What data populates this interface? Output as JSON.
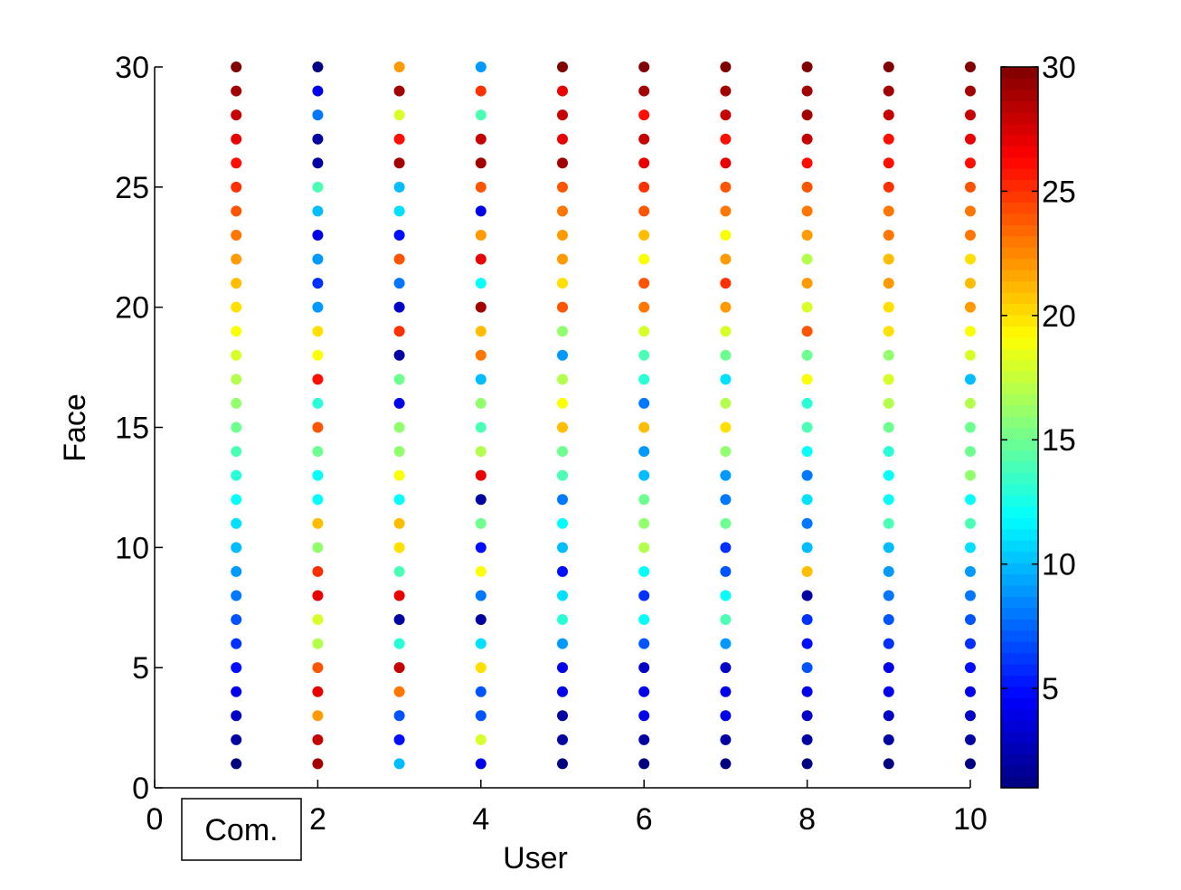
{
  "chart_data": {
    "type": "scatter",
    "x_label": "User",
    "y_label": "Face",
    "annotation": "Com.",
    "x": [
      1,
      2,
      3,
      4,
      5,
      6,
      7,
      8,
      9,
      10
    ],
    "y": [
      1,
      2,
      3,
      4,
      5,
      6,
      7,
      8,
      9,
      10,
      11,
      12,
      13,
      14,
      15,
      16,
      17,
      18,
      19,
      20,
      21,
      22,
      23,
      24,
      25,
      26,
      27,
      28,
      29,
      30
    ],
    "values": [
      [
        1,
        2,
        3,
        4,
        5,
        6,
        7,
        8,
        9,
        10,
        11,
        12,
        13,
        14,
        15,
        16,
        17,
        18,
        19,
        20,
        21,
        22,
        23,
        24,
        25,
        26,
        27,
        28,
        29,
        30
      ],
      [
        29,
        28,
        22,
        27,
        24,
        17,
        18,
        27,
        25,
        16,
        21,
        12,
        12,
        15,
        24,
        13,
        26,
        19,
        20,
        9,
        6,
        9,
        4,
        10,
        14,
        2,
        2,
        8,
        4,
        1
      ],
      [
        10,
        5,
        7,
        23,
        28,
        13,
        2,
        27,
        14,
        20,
        21,
        12,
        19,
        16,
        16,
        4,
        15,
        2,
        25,
        3,
        8,
        24,
        5,
        11,
        10,
        29,
        26,
        18,
        29,
        22
      ],
      [
        4,
        18,
        7,
        7,
        20,
        11,
        2,
        8,
        19,
        5,
        15,
        2,
        27,
        17,
        14,
        16,
        10,
        23,
        21,
        29,
        12,
        27,
        22,
        4,
        24,
        29,
        28,
        14,
        25,
        9
      ],
      [
        1,
        2,
        2,
        4,
        4,
        9,
        13,
        11,
        5,
        10,
        12,
        8,
        14,
        15,
        21,
        19,
        17,
        9,
        16,
        24,
        20,
        22,
        22,
        23,
        24,
        29,
        27,
        28,
        27,
        30
      ],
      [
        1,
        2,
        4,
        4,
        3,
        7,
        12,
        6,
        12,
        17,
        16,
        15,
        10,
        9,
        21,
        8,
        13,
        14,
        18,
        23,
        24,
        19,
        21,
        24,
        25,
        27,
        28,
        26,
        29,
        30
      ],
      [
        1,
        2,
        4,
        4,
        3,
        9,
        14,
        12,
        7,
        6,
        15,
        8,
        9,
        16,
        20,
        17,
        11,
        15,
        18,
        22,
        25,
        22,
        19,
        23,
        24,
        27,
        26,
        28,
        29,
        30
      ],
      [
        1,
        2,
        3,
        4,
        7,
        5,
        6,
        2,
        21,
        10,
        8,
        11,
        8,
        12,
        14,
        13,
        19,
        15,
        24,
        18,
        22,
        17,
        22,
        23,
        24,
        26,
        28,
        29,
        29,
        30
      ],
      [
        1,
        2,
        3,
        4,
        4,
        6,
        7,
        8,
        9,
        10,
        14,
        12,
        12,
        13,
        15,
        17,
        18,
        16,
        20,
        20,
        22,
        21,
        23,
        23,
        25,
        26,
        26,
        28,
        29,
        30
      ],
      [
        1,
        2,
        3,
        4,
        5,
        6,
        7,
        8,
        9,
        11,
        14,
        12,
        16,
        15,
        15,
        17,
        10,
        18,
        19,
        22,
        21,
        20,
        23,
        23,
        24,
        26,
        27,
        28,
        29,
        30
      ]
    ],
    "colormap": "jet",
    "clim": [
      1,
      30
    ],
    "cticks": [
      5,
      10,
      15,
      20,
      25,
      30
    ],
    "xlim": [
      0,
      10
    ],
    "xticks": [
      0,
      2,
      4,
      6,
      8,
      10
    ],
    "ylim": [
      0,
      30
    ],
    "yticks": [
      0,
      5,
      10,
      15,
      20,
      25,
      30
    ]
  }
}
